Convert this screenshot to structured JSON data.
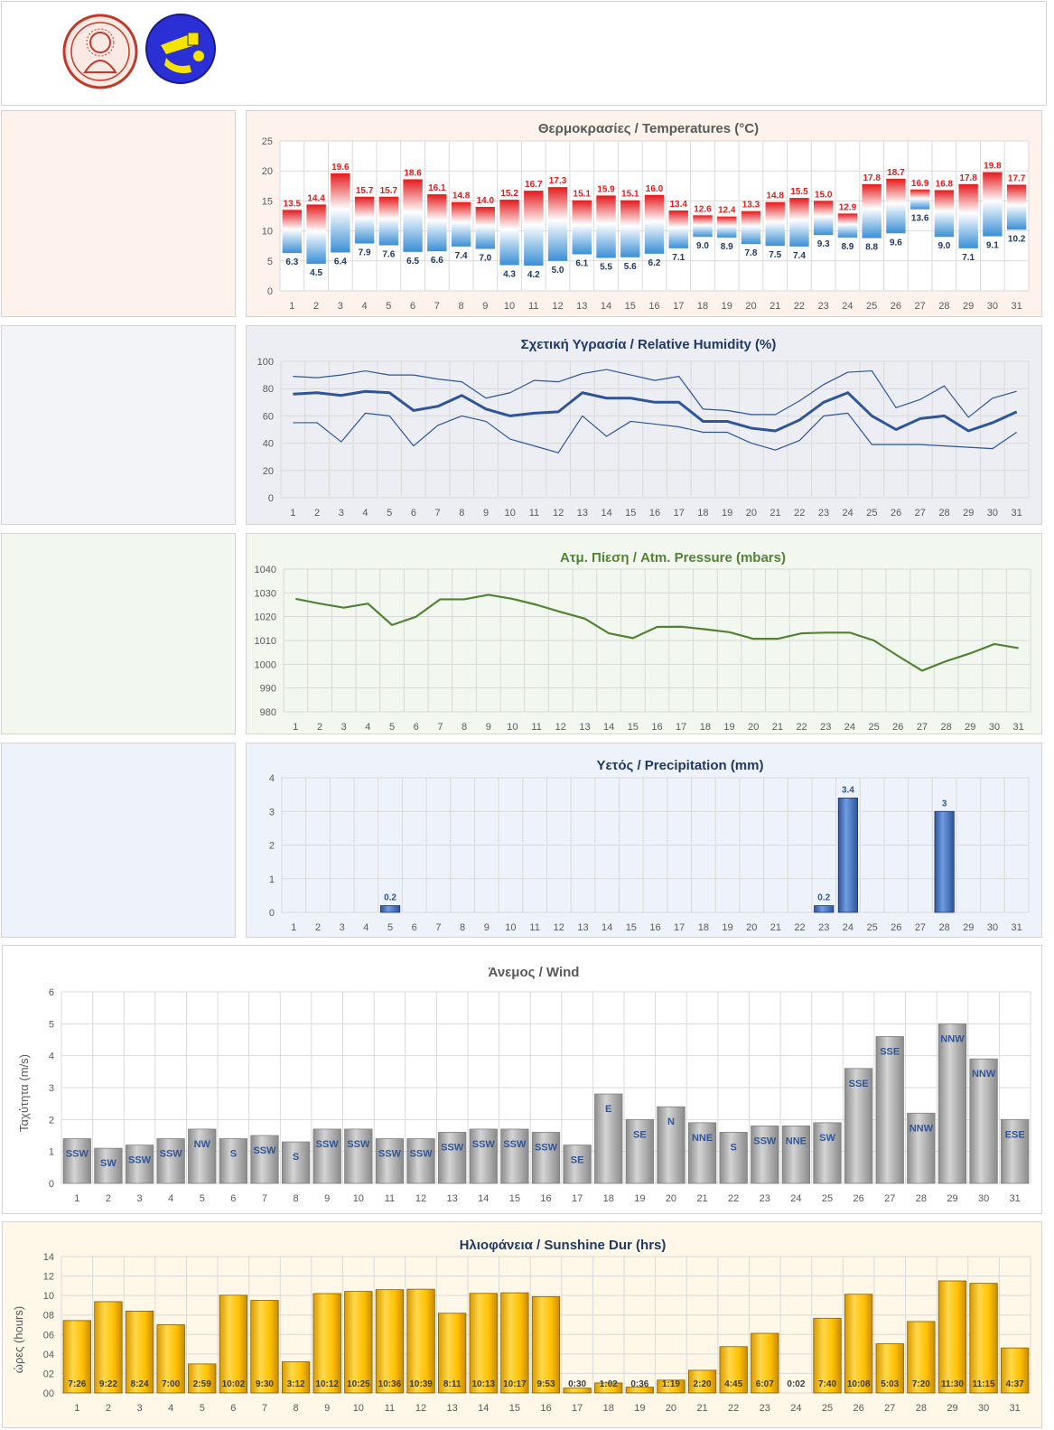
{
  "days": [
    "1",
    "2",
    "3",
    "4",
    "5",
    "6",
    "7",
    "8",
    "9",
    "10",
    "11",
    "12",
    "13",
    "14",
    "15",
    "16",
    "17",
    "18",
    "19",
    "20",
    "21",
    "22",
    "23",
    "24",
    "25",
    "26",
    "27",
    "28",
    "29",
    "30",
    "31"
  ],
  "header": {
    "logo1": "university-seal-logo",
    "logo2": "astronomy-club-logo"
  },
  "temperature": {
    "title": "Θερμοκρασίες / Temperatures (°C)",
    "type": "bar",
    "ylim": [
      0,
      25
    ],
    "yticks": [
      "0",
      "5",
      "10",
      "15",
      "20",
      "25"
    ],
    "max": [
      13.5,
      14.4,
      19.6,
      15.7,
      15.7,
      18.6,
      16.1,
      14.8,
      14.0,
      15.2,
      16.7,
      17.3,
      15.1,
      15.9,
      15.1,
      16.0,
      13.4,
      12.6,
      12.4,
      13.3,
      14.8,
      15.5,
      15.0,
      12.9,
      17.8,
      18.7,
      16.9,
      16.8,
      17.8,
      19.8,
      17.7
    ],
    "min": [
      6.3,
      4.5,
      6.4,
      7.9,
      7.6,
      6.5,
      6.6,
      7.4,
      7.0,
      4.3,
      4.2,
      5.0,
      6.1,
      5.5,
      5.6,
      6.2,
      7.1,
      9.0,
      8.9,
      7.8,
      7.5,
      7.4,
      9.3,
      8.9,
      8.8,
      9.6,
      13.6,
      9.0,
      7.1,
      9.1,
      10.2
    ],
    "max_labels": [
      "13.5",
      "14.4",
      "19.6",
      "15.7",
      "15.7",
      "18.6",
      "16.1",
      "14.8",
      "14.0",
      "15.2",
      "16.7",
      "17.3",
      "15.1",
      "15.9",
      "15.1",
      "16.0",
      "13.4",
      "12.6",
      "12.4",
      "13.3",
      "14.8",
      "15.5",
      "15.0",
      "12.9",
      "17.8",
      "18.7",
      "16.9",
      "16.8",
      "17.8",
      "19.8",
      "17.7"
    ],
    "min_labels": [
      "6.3",
      "4.5",
      "6.4",
      "7.9",
      "7.6",
      "6.5",
      "6.6",
      "7.4",
      "7.0",
      "4.3",
      "4.2",
      "5.0",
      "6.1",
      "5.5",
      "5.6",
      "6.2",
      "7.1",
      "9.0",
      "8.9",
      "7.8",
      "7.5",
      "7.4",
      "9.3",
      "8.9",
      "8.8",
      "9.6",
      "13.6",
      "9.0",
      "7.1",
      "9.1",
      "10.2"
    ],
    "colors": {
      "max_text": "#e31a1c",
      "min_text": "#1f3864",
      "warm": "#e31a1c",
      "cold": "#3a8fd6",
      "title": "#595959",
      "panel_bg": "#fdf3ec"
    }
  },
  "humidity": {
    "title": "Σχετική Υγρασία / Relative Humidity (%)",
    "type": "line",
    "ylim": [
      0,
      100
    ],
    "yticks": [
      "0",
      "20",
      "40",
      "60",
      "80",
      "100"
    ],
    "max": [
      89,
      88,
      90,
      93,
      90,
      90,
      87,
      85,
      73,
      77,
      86,
      85,
      91,
      94,
      90,
      86,
      89,
      65,
      64,
      61,
      61,
      71,
      83,
      92,
      93,
      66,
      72,
      82,
      59,
      73,
      78
    ],
    "mean": [
      76,
      77,
      75,
      78,
      77,
      64,
      67,
      75,
      65,
      60,
      62,
      63,
      77,
      73,
      73,
      70,
      70,
      56,
      56,
      51,
      49,
      57,
      70,
      77,
      60,
      50,
      58,
      60,
      49,
      55,
      63
    ],
    "min": [
      55,
      55,
      41,
      62,
      60,
      38,
      53,
      60,
      56,
      43,
      38,
      33,
      60,
      45,
      56,
      54,
      52,
      48,
      48,
      40,
      35,
      42,
      60,
      62,
      39,
      39,
      39,
      38,
      37,
      36,
      48
    ],
    "colors": {
      "line": "#2f5597",
      "title": "#1f3864",
      "panel_bg": "#eceef3"
    }
  },
  "pressure": {
    "title": "Ατμ. Πίεση / Atm. Pressure (mbars)",
    "type": "line",
    "ylim": [
      980,
      1040
    ],
    "yticks": [
      "980",
      "990",
      "1000",
      "1010",
      "1020",
      "1030",
      "1040"
    ],
    "values": [
      1027.5,
      1025.5,
      1023.8,
      1025.5,
      1016.5,
      1020,
      1027.3,
      1027.3,
      1029.2,
      1027.5,
      1025,
      1022,
      1019.2,
      1013,
      1011,
      1015.7,
      1015.8,
      1014.7,
      1013.5,
      1010.7,
      1010.7,
      1013,
      1013.3,
      1013.3,
      1010,
      1003.5,
      997.3,
      1001.3,
      1004.6,
      1008.5,
      1006.8
    ],
    "colors": {
      "line": "#548235",
      "title": "#548235",
      "panel_bg": "#f2f8f0"
    }
  },
  "precipitation": {
    "title": "Υετός / Precipitation (mm)",
    "type": "bar",
    "ylim": [
      0,
      4
    ],
    "yticks": [
      "0",
      "1",
      "2",
      "3",
      "4"
    ],
    "values": [
      0,
      0,
      0,
      0,
      0.2,
      0,
      0,
      0,
      0,
      0,
      0,
      0,
      0,
      0,
      0,
      0,
      0,
      0,
      0,
      0,
      0,
      0,
      0.2,
      3.4,
      0,
      0,
      0,
      3,
      0,
      0,
      0
    ],
    "labels": [
      "",
      "",
      "",
      "",
      "0.2",
      "",
      "",
      "",
      "",
      "",
      "",
      "",
      "",
      "",
      "",
      "",
      "",
      "",
      "",
      "",
      "",
      "",
      "0.2",
      "3.4",
      "",
      "",
      "",
      "3",
      "",
      "",
      ""
    ],
    "colors": {
      "bar": "#4472c4",
      "label": "#2f5597",
      "title": "#1f3864",
      "panel_bg": "#eef3fb"
    }
  },
  "wind": {
    "title": "Άνεμος / Wind",
    "ylabel": "Ταχύτητα  (m/s)",
    "type": "bar",
    "ylim": [
      0,
      6
    ],
    "yticks": [
      "0",
      "1",
      "2",
      "3",
      "4",
      "5",
      "6"
    ],
    "values": [
      1.4,
      1.1,
      1.2,
      1.4,
      1.7,
      1.4,
      1.5,
      1.3,
      1.7,
      1.7,
      1.4,
      1.4,
      1.6,
      1.7,
      1.7,
      1.6,
      1.2,
      2.8,
      2.0,
      2.4,
      1.9,
      1.6,
      1.8,
      1.8,
      1.9,
      3.6,
      4.6,
      2.2,
      5.0,
      3.9,
      2.0
    ],
    "directions": [
      "SSW",
      "SW",
      "SSW",
      "SSW",
      "NW",
      "S",
      "SSW",
      "S",
      "SSW",
      "SSW",
      "SSW",
      "SSW",
      "SSW",
      "SSW",
      "SSW",
      "SSW",
      "SE",
      "E",
      "SE",
      "N",
      "NNE",
      "S",
      "SSW",
      "NNE",
      "SW",
      "SSE",
      "SSE",
      "NNW",
      "NNW",
      "NNW",
      "ESE"
    ],
    "colors": {
      "bar": "#a6a6a6",
      "label": "#2f5597",
      "title": "#595959"
    }
  },
  "sunshine": {
    "title": "Ηλιοφάνεια / Sunshine Dur (hrs)",
    "ylabel": "ώρες (hours)",
    "type": "bar",
    "ylim": [
      0,
      14
    ],
    "yticks": [
      "00",
      "02",
      "04",
      "06",
      "08",
      "10",
      "12",
      "14"
    ],
    "values": [
      7.43,
      9.37,
      8.4,
      7.0,
      2.98,
      10.03,
      9.5,
      3.2,
      10.2,
      10.42,
      10.6,
      10.65,
      8.18,
      10.22,
      10.28,
      9.88,
      0.5,
      1.03,
      0.6,
      1.32,
      2.33,
      4.75,
      6.12,
      0.03,
      7.67,
      10.13,
      5.05,
      7.33,
      11.5,
      11.25,
      4.62
    ],
    "labels": [
      "7:26",
      "9:22",
      "8:24",
      "7:00",
      "2:59",
      "10:02",
      "9:30",
      "3:12",
      "10:12",
      "10:25",
      "10:36",
      "10:39",
      "8:11",
      "10:13",
      "10:17",
      "9:53",
      "0:30",
      "1:02",
      "0:36",
      "1:19",
      "2:20",
      "4:45",
      "6:07",
      "0:02",
      "7:40",
      "10:08",
      "5:03",
      "7:20",
      "11:30",
      "11:15",
      "4:37"
    ],
    "colors": {
      "bar": "#ffc000",
      "label": "#3a3a3a",
      "title": "#1f3864",
      "panel_bg": "#fff8e8"
    }
  }
}
